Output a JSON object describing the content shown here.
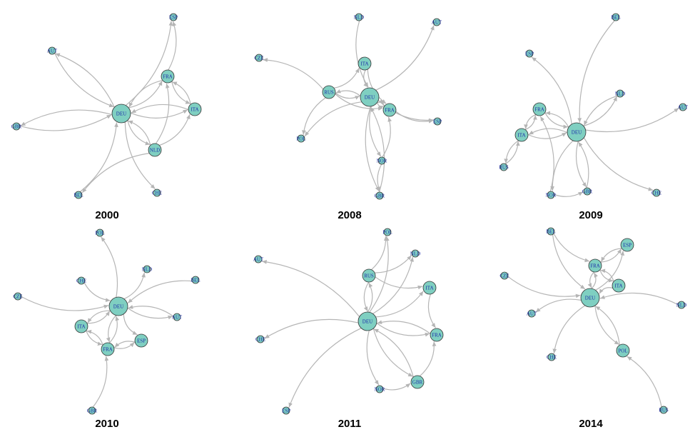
{
  "colors": {
    "node_fill": "#7fcfc1",
    "node_stroke": "#333333",
    "edge": "#b5b5b5",
    "label": "#1a2aa8"
  },
  "panels": [
    {
      "title": "2000",
      "nodes": [
        {
          "label": "DEU",
          "size": "large"
        },
        {
          "label": "ESP",
          "size": "small"
        },
        {
          "label": "AUT",
          "size": "small"
        },
        {
          "label": "FRA",
          "size": "medium"
        },
        {
          "label": "ITA",
          "size": "medium"
        },
        {
          "label": "GBR",
          "size": "small"
        },
        {
          "label": "NLD",
          "size": "medium"
        },
        {
          "label": "BEL",
          "size": "small"
        },
        {
          "label": "CHE",
          "size": "small"
        }
      ],
      "edges": [
        [
          "DEU",
          "ESP"
        ],
        [
          "FRA",
          "ESP"
        ],
        [
          "AUT",
          "DEU"
        ],
        [
          "DEU",
          "AUT"
        ],
        [
          "DEU",
          "FRA"
        ],
        [
          "FRA",
          "DEU"
        ],
        [
          "DEU",
          "ITA"
        ],
        [
          "ITA",
          "DEU"
        ],
        [
          "DEU",
          "GBR"
        ],
        [
          "GBR",
          "DEU"
        ],
        [
          "DEU",
          "NLD"
        ],
        [
          "NLD",
          "DEU"
        ],
        [
          "BEL",
          "DEU"
        ],
        [
          "DEU",
          "CHE"
        ],
        [
          "NLD",
          "ITA"
        ],
        [
          "NLD",
          "FRA"
        ],
        [
          "FRA",
          "ITA"
        ],
        [
          "ITA",
          "FRA"
        ],
        [
          "NLD",
          "BEL"
        ]
      ]
    },
    {
      "title": "2008",
      "nodes": [
        {
          "label": "DEU",
          "size": "large"
        },
        {
          "label": "NLD",
          "size": "small"
        },
        {
          "label": "AUT",
          "size": "small"
        },
        {
          "label": "CZE",
          "size": "small"
        },
        {
          "label": "ITA",
          "size": "medium"
        },
        {
          "label": "RUS",
          "size": "medium"
        },
        {
          "label": "FRA",
          "size": "medium"
        },
        {
          "label": "ESP",
          "size": "small"
        },
        {
          "label": "POL",
          "size": "small"
        },
        {
          "label": "NOR",
          "size": "small"
        },
        {
          "label": "GBR",
          "size": "small"
        }
      ],
      "edges": [
        [
          "NLD",
          "DEU"
        ],
        [
          "DEU",
          "AUT"
        ],
        [
          "RUS",
          "CZE"
        ],
        [
          "RUS",
          "ITA"
        ],
        [
          "RUS",
          "DEU"
        ],
        [
          "DEU",
          "RUS"
        ],
        [
          "ITA",
          "DEU"
        ],
        [
          "ITA",
          "FRA"
        ],
        [
          "DEU",
          "FRA"
        ],
        [
          "FRA",
          "DEU"
        ],
        [
          "DEU",
          "ESP"
        ],
        [
          "FRA",
          "ESP"
        ],
        [
          "RUS",
          "POL"
        ],
        [
          "DEU",
          "POL"
        ],
        [
          "DEU",
          "NOR"
        ],
        [
          "NOR",
          "FRA"
        ],
        [
          "DEU",
          "GBR"
        ],
        [
          "GBR",
          "DEU"
        ],
        [
          "NOR",
          "GBR"
        ],
        [
          "RUS",
          "FRA"
        ]
      ]
    },
    {
      "title": "2009",
      "nodes": [
        {
          "label": "DEU",
          "size": "large"
        },
        {
          "label": "BEL",
          "size": "small"
        },
        {
          "label": "ESP",
          "size": "small"
        },
        {
          "label": "NLD",
          "size": "small"
        },
        {
          "label": "AUT",
          "size": "small"
        },
        {
          "label": "FRA",
          "size": "medium"
        },
        {
          "label": "ITA",
          "size": "medium"
        },
        {
          "label": "RUS",
          "size": "small"
        },
        {
          "label": "NOR",
          "size": "small"
        },
        {
          "label": "GBR",
          "size": "small"
        },
        {
          "label": "CHE",
          "size": "small"
        }
      ],
      "edges": [
        [
          "BEL",
          "DEU"
        ],
        [
          "DEU",
          "ESP"
        ],
        [
          "NLD",
          "DEU"
        ],
        [
          "DEU",
          "NLD"
        ],
        [
          "DEU",
          "AUT"
        ],
        [
          "FRA",
          "DEU"
        ],
        [
          "DEU",
          "FRA"
        ],
        [
          "ITA",
          "DEU"
        ],
        [
          "DEU",
          "ITA"
        ],
        [
          "FRA",
          "ITA"
        ],
        [
          "ITA",
          "FRA"
        ],
        [
          "RUS",
          "ITA"
        ],
        [
          "ITA",
          "RUS"
        ],
        [
          "NOR",
          "GBR"
        ],
        [
          "GBR",
          "DEU"
        ],
        [
          "DEU",
          "GBR"
        ],
        [
          "NOR",
          "FRA"
        ],
        [
          "DEU",
          "NOR"
        ],
        [
          "DEU",
          "CHE"
        ]
      ]
    },
    {
      "title": "2010",
      "nodes": [
        {
          "label": "DEU",
          "size": "large"
        },
        {
          "label": "POL",
          "size": "small"
        },
        {
          "label": "CHE",
          "size": "small"
        },
        {
          "label": "NLD",
          "size": "small"
        },
        {
          "label": "BEL",
          "size": "small"
        },
        {
          "label": "CZE",
          "size": "small"
        },
        {
          "label": "AUT",
          "size": "small"
        },
        {
          "label": "ITA",
          "size": "medium"
        },
        {
          "label": "ESP",
          "size": "medium"
        },
        {
          "label": "FRA",
          "size": "medium"
        },
        {
          "label": "GBR",
          "size": "small"
        }
      ],
      "edges": [
        [
          "DEU",
          "POL"
        ],
        [
          "CHE",
          "DEU"
        ],
        [
          "DEU",
          "NLD"
        ],
        [
          "BEL",
          "DEU"
        ],
        [
          "CZE",
          "DEU"
        ],
        [
          "DEU",
          "AUT"
        ],
        [
          "AUT",
          "DEU"
        ],
        [
          "DEU",
          "ITA"
        ],
        [
          "ITA",
          "DEU"
        ],
        [
          "DEU",
          "FRA"
        ],
        [
          "FRA",
          "DEU"
        ],
        [
          "DEU",
          "ESP"
        ],
        [
          "ESP",
          "FRA"
        ],
        [
          "FRA",
          "ESP"
        ],
        [
          "ITA",
          "FRA"
        ],
        [
          "FRA",
          "ITA"
        ],
        [
          "GBR",
          "FRA"
        ]
      ]
    },
    {
      "title": "2011",
      "nodes": [
        {
          "label": "DEU",
          "size": "large"
        },
        {
          "label": "POL",
          "size": "small"
        },
        {
          "label": "NLD",
          "size": "small"
        },
        {
          "label": "AUT",
          "size": "small"
        },
        {
          "label": "RUS",
          "size": "medium"
        },
        {
          "label": "ITA",
          "size": "medium"
        },
        {
          "label": "CHE",
          "size": "small"
        },
        {
          "label": "FRA",
          "size": "medium"
        },
        {
          "label": "GBR",
          "size": "medium"
        },
        {
          "label": "NOR",
          "size": "small"
        },
        {
          "label": "ESP",
          "size": "small"
        }
      ],
      "edges": [
        [
          "RUS",
          "POL"
        ],
        [
          "DEU",
          "POL"
        ],
        [
          "DEU",
          "NLD"
        ],
        [
          "RUS",
          "NLD"
        ],
        [
          "DEU",
          "AUT"
        ],
        [
          "DEU",
          "RUS"
        ],
        [
          "RUS",
          "DEU"
        ],
        [
          "DEU",
          "ITA"
        ],
        [
          "RUS",
          "ITA"
        ],
        [
          "ITA",
          "FRA"
        ],
        [
          "DEU",
          "FRA"
        ],
        [
          "FRA",
          "DEU"
        ],
        [
          "DEU",
          "CHE"
        ],
        [
          "DEU",
          "GBR"
        ],
        [
          "GBR",
          "DEU"
        ],
        [
          "GBR",
          "FRA"
        ],
        [
          "DEU",
          "NOR"
        ],
        [
          "NOR",
          "GBR"
        ],
        [
          "DEU",
          "ESP"
        ]
      ]
    },
    {
      "title": "2014",
      "nodes": [
        {
          "label": "DEU",
          "size": "large"
        },
        {
          "label": "BEL",
          "size": "small"
        },
        {
          "label": "ESP",
          "size": "medium"
        },
        {
          "label": "FRA",
          "size": "medium"
        },
        {
          "label": "CZE",
          "size": "small"
        },
        {
          "label": "ITA",
          "size": "medium"
        },
        {
          "label": "AUT",
          "size": "small"
        },
        {
          "label": "NLD",
          "size": "small"
        },
        {
          "label": "CHE",
          "size": "small"
        },
        {
          "label": "POL",
          "size": "medium"
        },
        {
          "label": "RUS",
          "size": "small"
        }
      ],
      "edges": [
        [
          "BEL",
          "FRA"
        ],
        [
          "BEL",
          "DEU"
        ],
        [
          "FRA",
          "ESP"
        ],
        [
          "ESP",
          "FRA"
        ],
        [
          "FRA",
          "DEU"
        ],
        [
          "DEU",
          "FRA"
        ],
        [
          "CZE",
          "DEU"
        ],
        [
          "ITA",
          "DEU"
        ],
        [
          "ITA",
          "FRA"
        ],
        [
          "FRA",
          "ITA"
        ],
        [
          "DEU",
          "ESP"
        ],
        [
          "DEU",
          "AUT"
        ],
        [
          "NLD",
          "DEU"
        ],
        [
          "DEU",
          "CHE"
        ],
        [
          "DEU",
          "POL"
        ],
        [
          "POL",
          "DEU"
        ],
        [
          "RUS",
          "POL"
        ]
      ]
    }
  ]
}
